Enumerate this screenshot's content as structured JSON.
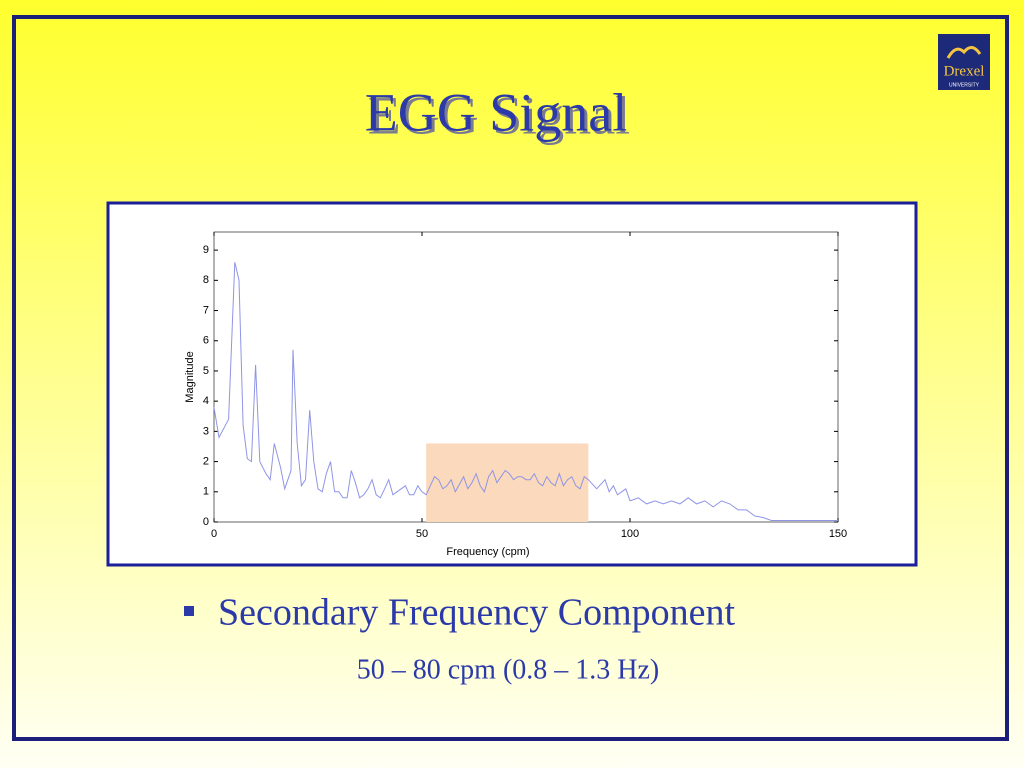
{
  "slide": {
    "title": "EGG Signal",
    "logo": {
      "name": "Drexel",
      "sub": "UNIVERSITY"
    },
    "bullet": "Secondary Frequency Component",
    "sub_bullet": "50 – 80 cpm (0.8 – 1.3 Hz)"
  },
  "chart_data": {
    "type": "line",
    "xlabel": "Frequency (cpm)",
    "ylabel": "Magnitude",
    "color": "#8f95e6",
    "x": [
      0,
      1.2,
      3.5,
      5,
      6,
      7,
      8,
      9,
      10,
      11,
      12.5,
      13.5,
      14.5,
      16,
      17,
      18.5,
      19,
      20,
      21,
      22,
      23,
      24,
      25,
      26,
      27,
      28,
      29,
      30,
      31,
      32,
      33,
      34,
      35,
      36,
      37,
      38,
      39,
      40,
      41,
      42,
      43,
      44,
      46,
      47,
      48,
      49,
      50,
      51,
      52,
      53,
      54,
      55,
      56,
      57,
      58,
      60,
      61,
      62,
      63,
      64,
      65,
      66,
      67,
      68,
      70,
      71,
      72,
      73,
      74,
      75,
      76,
      77,
      78,
      79,
      80,
      81,
      82,
      83,
      84,
      85,
      86,
      87,
      88,
      89,
      90,
      92,
      94,
      95,
      96,
      97,
      98,
      99,
      100,
      102,
      104,
      106,
      108,
      110,
      112,
      114,
      116,
      118,
      120,
      122,
      124,
      126,
      128,
      130,
      132,
      134,
      136,
      140,
      145,
      150
    ],
    "values": [
      3.8,
      2.8,
      3.4,
      8.6,
      8.0,
      3.2,
      2.1,
      2.0,
      5.2,
      2.0,
      1.6,
      1.4,
      2.6,
      1.8,
      1.1,
      1.7,
      5.7,
      2.6,
      1.2,
      1.4,
      3.7,
      2.0,
      1.1,
      1.0,
      1.6,
      2.0,
      1.0,
      1.0,
      0.8,
      0.8,
      1.7,
      1.3,
      0.8,
      0.9,
      1.1,
      1.4,
      0.9,
      0.8,
      1.1,
      1.4,
      0.9,
      1.0,
      1.2,
      0.9,
      0.9,
      1.2,
      1.0,
      0.9,
      1.2,
      1.5,
      1.4,
      1.1,
      1.2,
      1.4,
      1.0,
      1.5,
      1.1,
      1.3,
      1.6,
      1.2,
      1.0,
      1.5,
      1.7,
      1.3,
      1.7,
      1.6,
      1.4,
      1.5,
      1.5,
      1.4,
      1.4,
      1.6,
      1.3,
      1.2,
      1.5,
      1.3,
      1.2,
      1.6,
      1.2,
      1.4,
      1.5,
      1.2,
      1.1,
      1.5,
      1.4,
      1.1,
      1.4,
      1.0,
      1.2,
      0.9,
      1.0,
      1.1,
      0.7,
      0.8,
      0.6,
      0.7,
      0.6,
      0.7,
      0.6,
      0.8,
      0.6,
      0.7,
      0.5,
      0.7,
      0.6,
      0.4,
      0.4,
      0.2,
      0.15,
      0.05,
      0.05,
      0.05,
      0.05,
      0.05
    ],
    "xlim": [
      0,
      150
    ],
    "ylim": [
      0,
      9.6
    ],
    "xticks": [
      0,
      50,
      100,
      150
    ],
    "yticks": [
      0,
      1,
      2,
      3,
      4,
      5,
      6,
      7,
      8,
      9
    ],
    "grid": false,
    "highlight": {
      "xlim": [
        51,
        90
      ],
      "ylim": [
        0,
        2.6
      ],
      "color": "#fbd9bc"
    }
  }
}
